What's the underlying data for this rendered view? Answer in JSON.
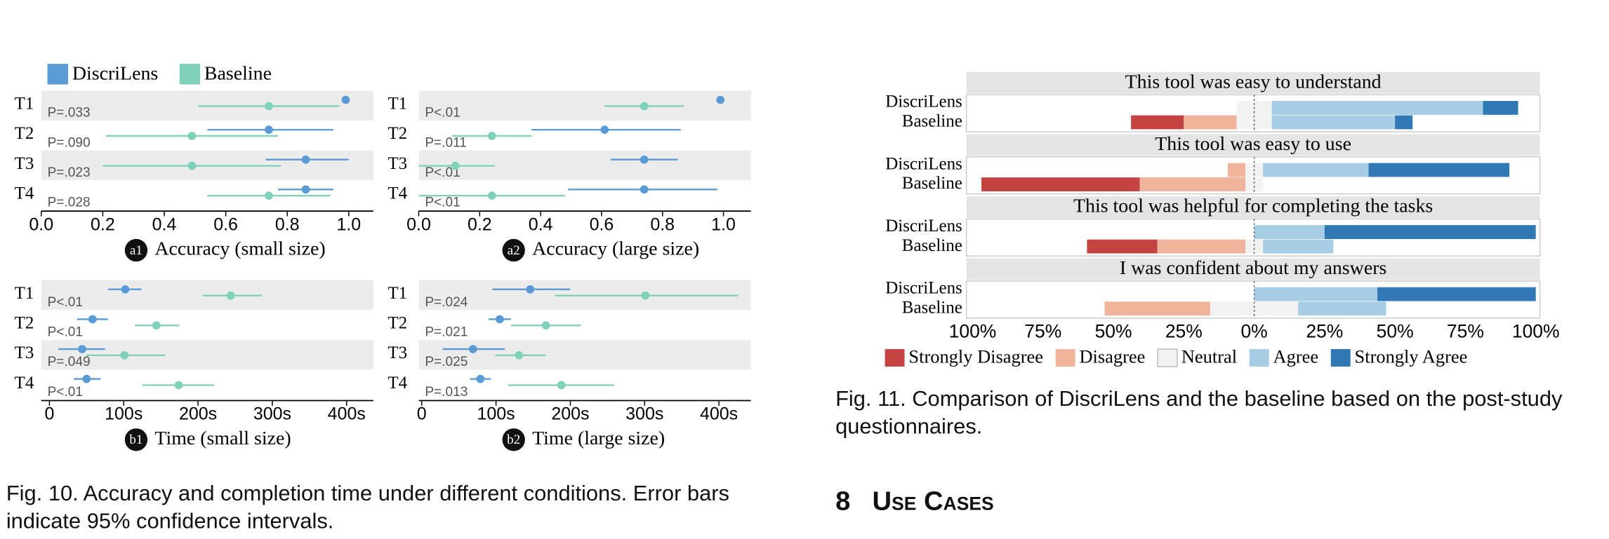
{
  "figure10": {
    "legend": [
      {
        "name": "DiscriLens",
        "color": "#5b9bd5"
      },
      {
        "name": "Baseline",
        "color": "#7fd1b9"
      }
    ],
    "rows": [
      "T1",
      "T2",
      "T3",
      "T4"
    ],
    "panels": [
      {
        "badge": "a1",
        "title": "Accuracy (small size)",
        "xlim": [
          0,
          1.08
        ],
        "xticks": [
          {
            "value": 0,
            "label": "0.0"
          },
          0.2,
          0.4,
          0.6,
          0.8,
          {
            "value": 1,
            "label": "1.0"
          }
        ],
        "p_values": [
          "P=.033",
          "P=.090",
          "P=.023",
          "P=.028"
        ],
        "series": [
          {
            "mean": [
              0.99,
              0.74,
              0.86,
              0.86
            ],
            "low": [
              0.99,
              0.54,
              0.73,
              0.77
            ],
            "high": [
              0.99,
              0.95,
              1.0,
              0.95
            ]
          },
          {
            "mean": [
              0.74,
              0.49,
              0.49,
              0.74
            ],
            "low": [
              0.51,
              0.21,
              0.2,
              0.54
            ],
            "high": [
              0.97,
              0.77,
              0.78,
              0.94
            ]
          }
        ]
      },
      {
        "badge": "a2",
        "title": "Accuracy (large size)",
        "xlim": [
          0,
          1.09
        ],
        "xticks": [
          {
            "value": 0,
            "label": "0.0"
          },
          0.2,
          0.4,
          0.6,
          0.8,
          {
            "value": 1,
            "label": "1.0"
          }
        ],
        "p_values": [
          "P<.01",
          "P=.011",
          "P<.01",
          "P<.01"
        ],
        "series": [
          {
            "mean": [
              0.99,
              0.61,
              0.74,
              0.74
            ],
            "low": [
              0.99,
              0.37,
              0.63,
              0.49
            ],
            "high": [
              0.99,
              0.86,
              0.85,
              0.98
            ]
          },
          {
            "mean": [
              0.74,
              0.24,
              0.12,
              0.24
            ],
            "low": [
              0.61,
              0.11,
              0.0,
              0.0
            ],
            "high": [
              0.87,
              0.37,
              0.25,
              0.48
            ]
          }
        ]
      },
      {
        "badge": "b1",
        "title": "Time (small size)",
        "xlim": [
          -11,
          436
        ],
        "xticks": [
          0,
          {
            "value": 100,
            "label": "100s"
          },
          {
            "value": 200,
            "label": "200s"
          },
          {
            "value": 300,
            "label": "300s"
          },
          {
            "value": 400,
            "label": "400s"
          }
        ],
        "p_values": [
          "P<.01",
          "P<.01",
          "P=.049",
          "P<.01"
        ],
        "series": [
          {
            "mean": [
              102,
              58,
              44,
              50
            ],
            "low": [
              79,
              37,
              12,
              33
            ],
            "high": [
              124,
              79,
              75,
              69
            ]
          },
          {
            "mean": [
              244,
              144,
              101,
              174
            ],
            "low": [
              206,
              115,
              50,
              125
            ],
            "high": [
              286,
              175,
              156,
              222
            ]
          }
        ]
      },
      {
        "badge": "b2",
        "title": "Time (large size)",
        "xlim": [
          -4,
          443
        ],
        "xticks": [
          0,
          {
            "value": 100,
            "label": "100s"
          },
          {
            "value": 200,
            "label": "200s"
          },
          {
            "value": 300,
            "label": "300s"
          },
          {
            "value": 400,
            "label": "400s"
          }
        ],
        "p_values": [
          "P=.024",
          "P=.021",
          "P=.025",
          "P=.013"
        ],
        "series": [
          {
            "mean": [
              146,
              105,
              69,
              79
            ],
            "low": [
              95,
              90,
              28,
              65
            ],
            "high": [
              200,
              120,
              112,
              93
            ]
          },
          {
            "mean": [
              301,
              167,
              131,
              188
            ],
            "low": [
              179,
              120,
              99,
              116
            ],
            "high": [
              426,
              214,
              167,
              259
            ]
          }
        ]
      }
    ],
    "caption": "Fig. 10. Accuracy and completion time under different conditions. Error bars indicate 95% confidence intervals."
  },
  "figure11": {
    "xlim": [
      -100,
      100
    ],
    "xticks": [
      {
        "value": -100,
        "label": "100%"
      },
      {
        "value": -75,
        "label": "75%"
      },
      {
        "value": -50,
        "label": "50%"
      },
      {
        "value": -25,
        "label": "25%"
      },
      {
        "value": 0,
        "label": "0%"
      },
      {
        "value": 25,
        "label": "25%"
      },
      {
        "value": 50,
        "label": "50%"
      },
      {
        "value": 75,
        "label": "75%"
      },
      {
        "value": 100,
        "label": "100%"
      }
    ],
    "levels": [
      {
        "name": "Strongly Disagree",
        "color": "#c44444"
      },
      {
        "name": "Disagree",
        "color": "#f0b39c"
      },
      {
        "name": "Neutral",
        "color": "#f2f2f2"
      },
      {
        "name": "Agree",
        "color": "#a6cde4"
      },
      {
        "name": "Strongly Agree",
        "color": "#3079b5"
      }
    ],
    "groups": [
      {
        "question": "This tool was easy to understand",
        "rows": [
          {
            "name": "DiscriLens",
            "values": [
              0,
              0,
              12.5,
              75,
              12.5
            ]
          },
          {
            "name": "Baseline",
            "values": [
              18.75,
              18.75,
              12.5,
              43.75,
              6.25
            ]
          }
        ]
      },
      {
        "question": "This tool was easy to use",
        "rows": [
          {
            "name": "DiscriLens",
            "values": [
              0,
              6.25,
              6.25,
              37.5,
              50
            ]
          },
          {
            "name": "Baseline",
            "values": [
              56.25,
              37.5,
              6.25,
              0,
              0
            ]
          }
        ]
      },
      {
        "question": "This tool was helpful for completing the tasks",
        "rows": [
          {
            "name": "DiscriLens",
            "values": [
              0,
              0,
              0,
              25,
              75
            ]
          },
          {
            "name": "Baseline",
            "values": [
              25,
              31.25,
              6.25,
              25,
              0
            ]
          }
        ]
      },
      {
        "question": "I was confident about my answers",
        "rows": [
          {
            "name": "DiscriLens",
            "values": [
              0,
              0,
              0,
              43.75,
              56.25
            ]
          },
          {
            "name": "Baseline",
            "values": [
              0,
              37.5,
              31.25,
              31.25,
              0
            ]
          }
        ]
      }
    ],
    "caption": "Fig. 11. Comparison of DiscriLens and the baseline based on the post-study questionnaires."
  },
  "section": {
    "number": "8",
    "title": "Use Cases"
  }
}
